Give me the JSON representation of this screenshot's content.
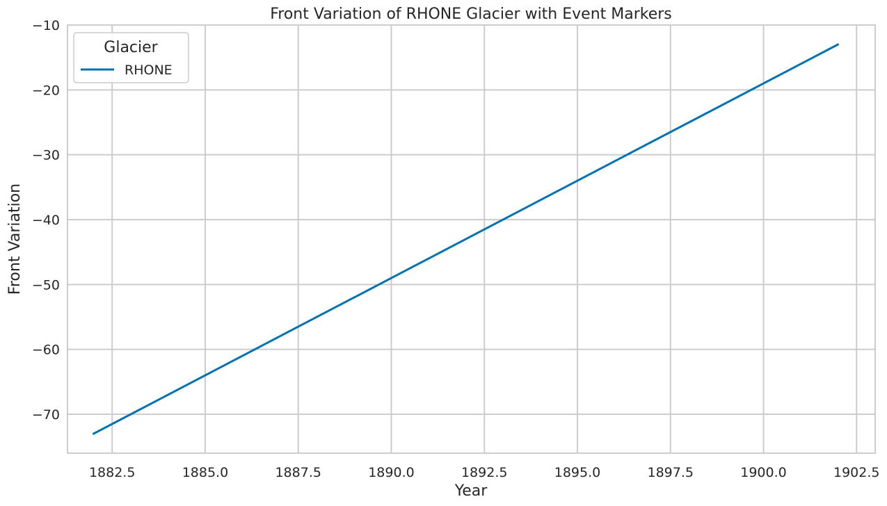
{
  "chart_data": {
    "type": "line",
    "title": "Front Variation of RHONE Glacier with Event Markers",
    "xlabel": "Year",
    "ylabel": "Front Variation",
    "xlim": [
      1881.3,
      1903.0
    ],
    "ylim": [
      -76,
      -10
    ],
    "x_ticks": [
      1882.5,
      1885.0,
      1887.5,
      1890.0,
      1892.5,
      1895.0,
      1897.5,
      1900.0,
      1902.5
    ],
    "x_tick_labels": [
      "1882.5",
      "1885.0",
      "1887.5",
      "1890.0",
      "1892.5",
      "1895.0",
      "1897.5",
      "1900.0",
      "1902.5"
    ],
    "y_ticks": [
      -70,
      -60,
      -50,
      -40,
      -30,
      -20,
      -10
    ],
    "y_tick_labels": [
      "−70",
      "−60",
      "−50",
      "−40",
      "−30",
      "−20",
      "−10"
    ],
    "grid": true,
    "legend": {
      "title": "Glacier",
      "placement": "top-left"
    },
    "series": [
      {
        "name": "RHONE",
        "color": "#0173b2",
        "x": [
          1882,
          1902
        ],
        "y": [
          -73,
          -13
        ]
      }
    ]
  }
}
